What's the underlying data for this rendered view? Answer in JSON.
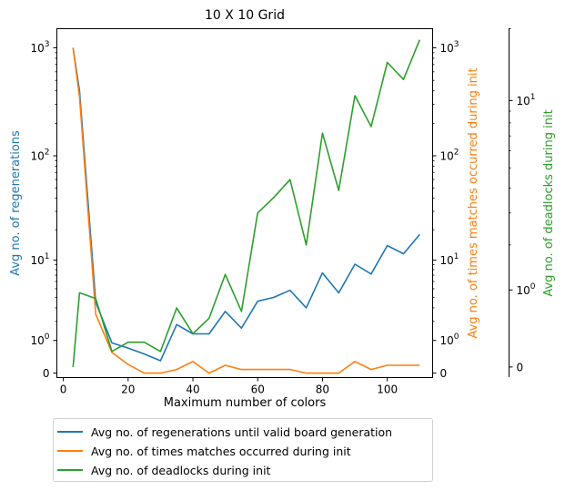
{
  "chart_data": {
    "type": "line",
    "title": "10 X 10 Grid",
    "xlabel": "Maximum number of colors",
    "x": [
      3,
      5,
      10,
      15,
      20,
      25,
      30,
      35,
      40,
      45,
      50,
      55,
      60,
      65,
      70,
      75,
      80,
      85,
      90,
      95,
      100,
      105,
      110
    ],
    "x_ticks": [
      "0",
      "20",
      "40",
      "60",
      "80",
      "100"
    ],
    "x_tick_values": [
      0,
      20,
      40,
      60,
      80,
      100
    ],
    "xlim": [
      -2,
      114
    ],
    "axes": [
      {
        "id": "left",
        "label": "Avg no. of regenerations",
        "color": "#1f77b4",
        "scale": "symlog",
        "ylim": [
          -0.1,
          1500
        ],
        "tick_labels": [
          "0",
          "10^0",
          "10^1",
          "10^2",
          "10^3"
        ],
        "tick_values": [
          0,
          1,
          10,
          100,
          1000
        ]
      },
      {
        "id": "right1",
        "label": "Avg no. of times matches occurred during init",
        "color": "#ff7f0e",
        "scale": "symlog",
        "ylim": [
          -0.1,
          1500
        ],
        "tick_labels": [
          "0",
          "10^0",
          "10^1",
          "10^2",
          "10^3"
        ],
        "tick_values": [
          0,
          1,
          10,
          100,
          1000
        ]
      },
      {
        "id": "right2",
        "label": "Avg no. of deadlocks during init",
        "color": "#2ca02c",
        "scale": "symlog",
        "ylim": [
          -0.1,
          20
        ],
        "tick_labels": [
          "0",
          "10^0",
          "10^1"
        ],
        "tick_values": [
          0,
          1,
          10
        ]
      }
    ],
    "series": [
      {
        "name": "Avg no. of regenerations until valid board generation",
        "axis": "left",
        "color": "#1f77b4",
        "values": [
          1000,
          400,
          3.5,
          0.9,
          0.7,
          0.5,
          0.3,
          1.8,
          1.3,
          1.3,
          2.7,
          1.6,
          3.6,
          4.0,
          4.8,
          3.0,
          7.4,
          4.5,
          9.1,
          7.2,
          14,
          11.6,
          18
        ]
      },
      {
        "name": "Avg no. of times matches occurred during init",
        "axis": "right1",
        "color": "#ff7f0e",
        "values": [
          1000,
          350,
          2.5,
          0.55,
          0.2,
          0.0,
          0.0,
          0.08,
          0.28,
          0.0,
          0.18,
          0.08,
          0.08,
          0.08,
          0.08,
          0.0,
          0.0,
          0.0,
          0.28,
          0.08,
          0.18,
          0.18,
          0.18
        ]
      },
      {
        "name": "Avg no. of deadlocks during init",
        "axis": "right2",
        "color": "#2ca02c",
        "values": [
          0.0,
          0.95,
          0.85,
          0.15,
          0.25,
          0.25,
          0.15,
          0.7,
          0.35,
          0.55,
          1.3,
          0.65,
          3.0,
          3.6,
          4.4,
          2.0,
          7.2,
          3.9,
          10.5,
          7.7,
          14.5,
          12.3,
          18
        ]
      }
    ],
    "legend": "bottom-left",
    "grid": false
  }
}
